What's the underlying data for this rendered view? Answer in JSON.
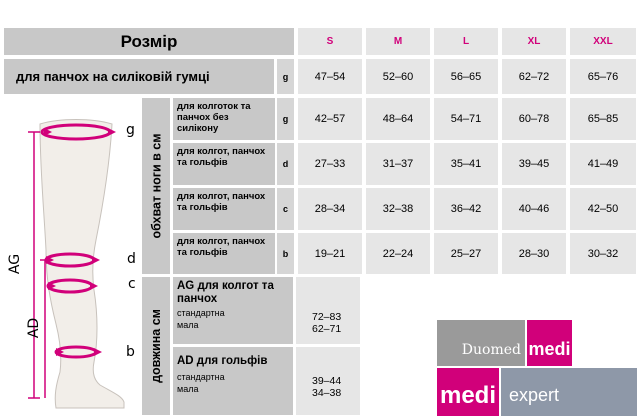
{
  "header": {
    "title": "Розмір",
    "sizes": [
      "S",
      "M",
      "L",
      "XL",
      "XXL"
    ]
  },
  "silicone_row": {
    "label": "для панчох на силіковій гумці",
    "key": "g",
    "values": [
      "47–54",
      "52–60",
      "56–65",
      "62–72",
      "65–76"
    ]
  },
  "circumference": {
    "axis_label": "обхват ноги в см",
    "rows": [
      {
        "label": "для колготок та панчох без силікону",
        "key": "g",
        "values": [
          "42–57",
          "48–64",
          "54–71",
          "60–78",
          "65–85"
        ]
      },
      {
        "label": "для колгот, панчох та гольфів",
        "key": "d",
        "values": [
          "27–33",
          "31–37",
          "35–41",
          "39–45",
          "41–49"
        ]
      },
      {
        "label": "для колгот, панчох та гольфів",
        "key": "c",
        "values": [
          "28–34",
          "32–38",
          "36–42",
          "40–46",
          "42–50"
        ]
      },
      {
        "label": "для колгот, панчох та гольфів",
        "key": "b",
        "values": [
          "19–21",
          "22–24",
          "25–27",
          "28–30",
          "30–32"
        ]
      }
    ]
  },
  "length": {
    "axis_label": "довжина см",
    "ag": {
      "title": "AG для колгот та панчох",
      "sub1": "стандартна",
      "sub2": "мала",
      "v1": "72–83",
      "v2": "62–71"
    },
    "ad": {
      "title": "AD для гольфів",
      "sub1": "стандартна",
      "sub2": "мала",
      "v1": "39–44",
      "v2": "34–38"
    }
  },
  "diagram": {
    "labels": {
      "g": "g",
      "d": "d",
      "c": "c",
      "b": "b",
      "AG": "AG",
      "AD": "AD"
    },
    "colors": {
      "arrow": "#d1007a",
      "leg": "#f2eee9"
    }
  },
  "logo": {
    "duomed": "Duomed",
    "medi1": "medi",
    "medi2": "medi",
    "expert": "expert",
    "colors": {
      "magenta": "#d1007a",
      "gray": "#9a9a9a",
      "slate": "#8e98a8"
    }
  }
}
